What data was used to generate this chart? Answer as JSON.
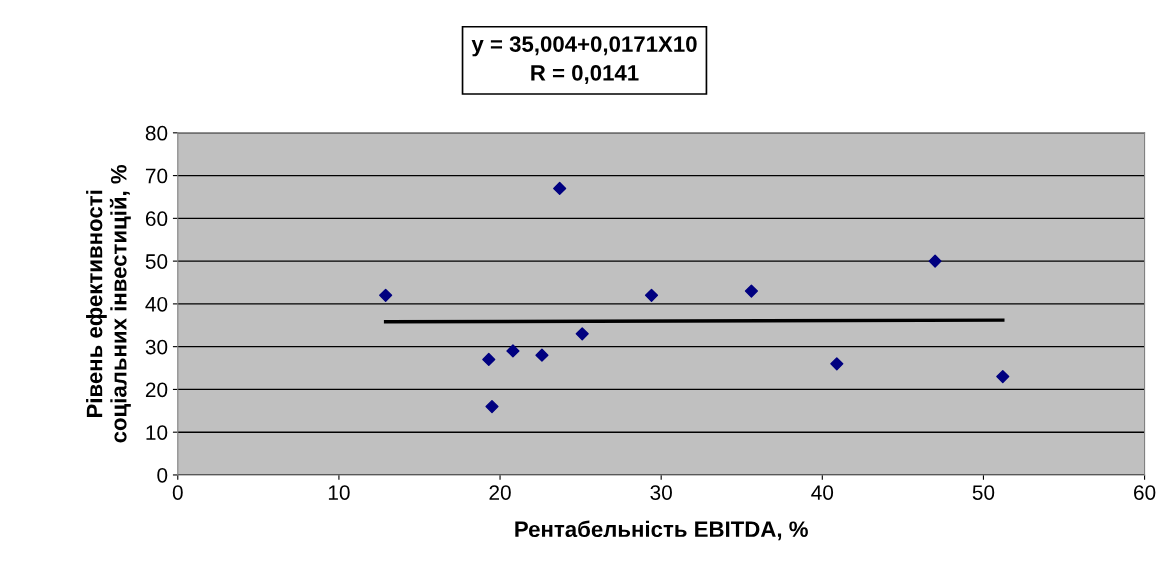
{
  "chart_data": {
    "type": "scatter",
    "title": "y = 35,004+0,0171X10",
    "subtitle": "R = 0,0141",
    "xlabel": "Рентабельність EBITDA, %",
    "ylabel": "Рівень ефективності\nсоціальних інвестицій, %",
    "series": [
      {
        "color": "#000080",
        "marker": "diamond",
        "x": [
          12.9,
          19.3,
          19.5,
          20.8,
          22.6,
          23.7,
          25.1,
          29.4,
          35.6,
          40.9,
          47.0,
          51.2
        ],
        "values": [
          42,
          27,
          16,
          29,
          28,
          67,
          33,
          42,
          43,
          26,
          50,
          23
        ]
      },
      {
        "type": "line",
        "color": "#000000",
        "marker": "none",
        "line_style": "solid",
        "x": [
          12.9,
          51.2
        ],
        "values": [
          35.8,
          36.2
        ]
      }
    ],
    "xlim": [
      0,
      60
    ],
    "xticks": [
      0,
      10,
      20,
      30,
      40,
      50,
      60
    ],
    "ylim": [
      0,
      80
    ],
    "yticks": [
      0,
      10,
      20,
      30,
      40,
      50,
      60,
      70,
      80
    ],
    "grid": "y",
    "legend": false
  }
}
